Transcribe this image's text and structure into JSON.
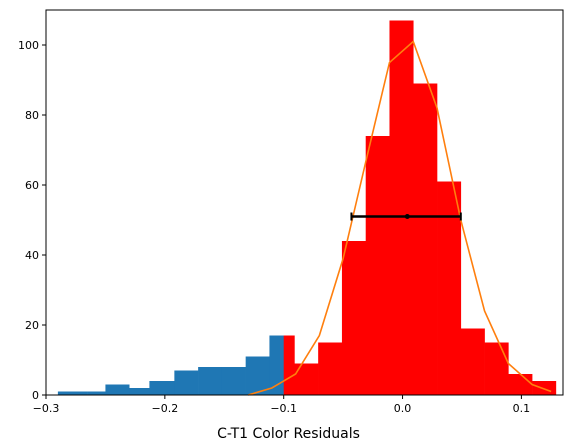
{
  "chart_data": {
    "type": "bar",
    "title": "",
    "xlabel": "C-T1 Color Residuals",
    "ylabel": "",
    "xlim": [
      -0.3,
      0.135
    ],
    "ylim": [
      0,
      110
    ],
    "grid": false,
    "x_ticks": [
      -0.3,
      -0.2,
      -0.1,
      0.0,
      0.1
    ],
    "x_tick_labels": [
      "−0.3",
      "−0.2",
      "−0.1",
      "0.0",
      "0.1"
    ],
    "y_ticks": [
      0,
      20,
      40,
      60,
      80,
      100
    ],
    "y_tick_labels": [
      "0",
      "20",
      "40",
      "60",
      "80",
      "100"
    ],
    "colors": {
      "left_hist": "#1f77b4",
      "right_hist": "#ff0000",
      "fit_line": "#ff7f0e",
      "errorbar": "#000000"
    },
    "series": [
      {
        "kind": "histogram",
        "color": "#1f77b4",
        "bins": [
          {
            "x0": -0.29,
            "x1": -0.265,
            "value": 1
          },
          {
            "x0": -0.265,
            "x1": -0.25,
            "value": 1
          },
          {
            "x0": -0.25,
            "x1": -0.23,
            "value": 3
          },
          {
            "x0": -0.23,
            "x1": -0.213,
            "value": 2
          },
          {
            "x0": -0.213,
            "x1": -0.192,
            "value": 4
          },
          {
            "x0": -0.192,
            "x1": -0.172,
            "value": 7
          },
          {
            "x0": -0.172,
            "x1": -0.152,
            "value": 8
          },
          {
            "x0": -0.152,
            "x1": -0.132,
            "value": 8
          },
          {
            "x0": -0.132,
            "x1": -0.112,
            "value": 11
          },
          {
            "x0": -0.112,
            "x1": -0.1,
            "value": 17
          }
        ]
      },
      {
        "kind": "histogram",
        "color": "#ff0000",
        "bins": [
          {
            "x0": -0.1,
            "x1": -0.091,
            "value": 17
          },
          {
            "x0": -0.091,
            "x1": -0.071,
            "value": 9
          },
          {
            "x0": -0.071,
            "x1": -0.051,
            "value": 15
          },
          {
            "x0": -0.051,
            "x1": -0.031,
            "value": 44
          },
          {
            "x0": -0.031,
            "x1": -0.011,
            "value": 74
          },
          {
            "x0": -0.011,
            "x1": 0.009,
            "value": 107
          },
          {
            "x0": 0.009,
            "x1": 0.029,
            "value": 89
          },
          {
            "x0": 0.029,
            "x1": 0.049,
            "value": 61
          },
          {
            "x0": 0.049,
            "x1": 0.069,
            "value": 19
          },
          {
            "x0": 0.069,
            "x1": 0.089,
            "value": 15
          },
          {
            "x0": 0.089,
            "x1": 0.109,
            "value": 6
          },
          {
            "x0": 0.109,
            "x1": 0.129,
            "value": 4
          }
        ]
      },
      {
        "kind": "line",
        "color": "#ff7f0e",
        "x": [
          -0.13,
          -0.11,
          -0.09,
          -0.07,
          -0.05,
          -0.03,
          -0.011,
          0.009,
          0.029,
          0.049,
          0.069,
          0.089,
          0.109,
          0.125
        ],
        "y": [
          0,
          2,
          6,
          17,
          39,
          68,
          95,
          101,
          82,
          50,
          24,
          9,
          3,
          1
        ]
      },
      {
        "kind": "errorbar",
        "color": "#000000",
        "x": 0.004,
        "y": 51,
        "xerr_low": -0.043,
        "xerr_high": 0.049
      }
    ]
  }
}
